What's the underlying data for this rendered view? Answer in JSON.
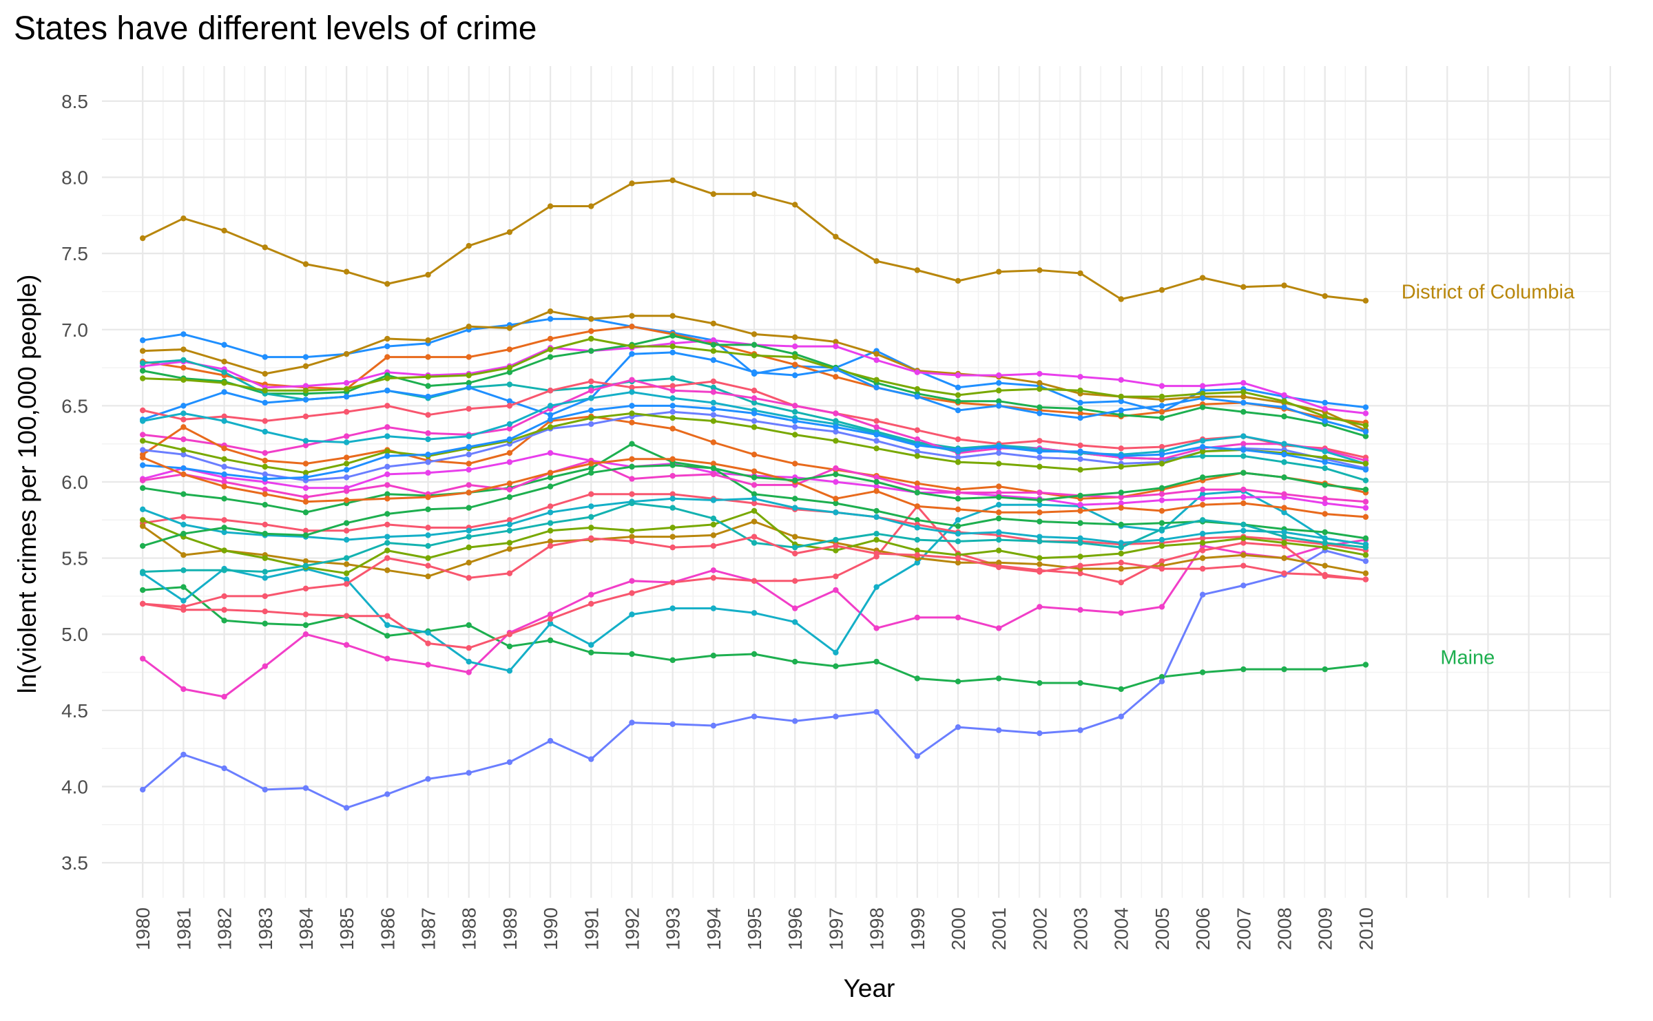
{
  "chart_data": {
    "type": "line",
    "title": "States have different levels of crime",
    "xlabel": "Year",
    "ylabel": "ln(violent crimes per 100,000 people)",
    "x": [
      1980,
      1981,
      1982,
      1983,
      1984,
      1985,
      1986,
      1987,
      1988,
      1989,
      1990,
      1991,
      1992,
      1993,
      1994,
      1995,
      1996,
      1997,
      1998,
      1999,
      2000,
      2001,
      2002,
      2003,
      2004,
      2005,
      2006,
      2007,
      2008,
      2009,
      2010
    ],
    "x_tick_labels": [
      "1980",
      "1981",
      "1982",
      "1983",
      "1984",
      "1985",
      "1986",
      "1987",
      "1988",
      "1989",
      "1990",
      "1991",
      "1992",
      "1993",
      "1994",
      "1995",
      "1996",
      "1997",
      "1998",
      "1999",
      "2000",
      "2001",
      "2002",
      "2003",
      "2004",
      "2005",
      "2006",
      "2007",
      "2008",
      "2009",
      "2010"
    ],
    "xlim": [
      1979.0,
      2016.0
    ],
    "ylim": [
      3.27,
      8.73
    ],
    "y_ticks": [
      3.5,
      4.0,
      4.5,
      5.0,
      5.5,
      6.0,
      6.5,
      7.0,
      7.5,
      8.0,
      8.5
    ],
    "y_tick_labels": [
      "3.5",
      "4.0",
      "4.5",
      "5.0",
      "5.5",
      "6.0",
      "6.5",
      "7.0",
      "7.5",
      "8.0",
      "8.5"
    ],
    "grid": true,
    "legend": "none",
    "annotations": [
      {
        "text": "District of Columbia",
        "x": 2013.0,
        "y": 7.25,
        "color": "#B8860B"
      },
      {
        "text": "Maine",
        "x": 2012.5,
        "y": 4.85,
        "color": "#1DAF4F"
      }
    ],
    "series": [
      {
        "name": "District of Columbia",
        "color": "#B8860B",
        "values": [
          7.6,
          7.73,
          7.65,
          7.54,
          7.43,
          7.38,
          7.3,
          7.36,
          7.55,
          7.64,
          7.81,
          7.81,
          7.96,
          7.98,
          7.89,
          7.89,
          7.82,
          7.61,
          7.45,
          7.39,
          7.32,
          7.38,
          7.39,
          7.37,
          7.2,
          7.26,
          7.34,
          7.28,
          7.29,
          7.22,
          7.19
        ]
      },
      {
        "name": "Maine",
        "color": "#1DAF4F",
        "values": [
          5.29,
          5.31,
          5.09,
          5.07,
          5.06,
          5.12,
          4.99,
          5.02,
          5.06,
          4.92,
          4.96,
          4.88,
          4.87,
          4.83,
          4.86,
          4.87,
          4.82,
          4.79,
          4.82,
          4.71,
          4.69,
          4.71,
          4.68,
          4.68,
          4.64,
          4.72,
          4.75,
          4.77,
          4.77,
          4.77,
          4.8
        ]
      },
      {
        "color": "#6A7EFF",
        "values": [
          3.98,
          4.21,
          4.12,
          3.98,
          3.99,
          3.86,
          3.95,
          4.05,
          4.09,
          4.16,
          4.3,
          4.18,
          4.42,
          4.41,
          4.4,
          4.46,
          4.43,
          4.46,
          4.49,
          4.2,
          4.39,
          4.37,
          4.35,
          4.37,
          4.46,
          4.69,
          5.26,
          5.32,
          5.39,
          5.55,
          5.48
        ]
      },
      {
        "color": "#F13EC8",
        "values": [
          4.84,
          4.64,
          4.59,
          4.79,
          5.0,
          4.93,
          4.84,
          4.8,
          4.75,
          5.01,
          5.13,
          5.26,
          5.35,
          5.34,
          5.42,
          5.35,
          5.17,
          5.29,
          5.04,
          5.11,
          5.11,
          5.04,
          5.18,
          5.16,
          5.14,
          5.18,
          5.58,
          5.53,
          5.5,
          5.58,
          5.62
        ]
      },
      {
        "color": "#14AFC7",
        "values": [
          5.4,
          5.22,
          5.43,
          5.37,
          5.43,
          5.36,
          5.06,
          5.01,
          4.82,
          4.76,
          5.07,
          4.93,
          5.13,
          5.17,
          5.17,
          5.14,
          5.08,
          4.88,
          5.31,
          5.47,
          5.75,
          5.85,
          5.85,
          5.84,
          5.71,
          5.68,
          5.92,
          5.94,
          5.8,
          5.63,
          5.59
        ]
      },
      {
        "color": "#F8566E",
        "values": [
          5.2,
          5.16,
          5.16,
          5.15,
          5.13,
          5.12,
          5.12,
          4.94,
          4.91,
          5.0,
          5.1,
          5.2,
          5.27,
          5.34,
          5.37,
          5.35,
          5.35,
          5.38,
          5.51,
          5.84,
          5.53,
          5.45,
          5.42,
          5.4,
          5.34,
          5.48,
          5.55,
          5.6,
          5.58,
          5.38,
          5.36
        ]
      },
      {
        "color": "#1F8FFF",
        "values": [
          6.93,
          6.97,
          6.9,
          6.82,
          6.82,
          6.84,
          6.89,
          6.91,
          7.0,
          7.03,
          7.07,
          7.07,
          7.02,
          6.98,
          6.93,
          6.71,
          6.76,
          6.75,
          6.86,
          6.73,
          6.62,
          6.65,
          6.63,
          6.52,
          6.53,
          6.46,
          6.6,
          6.61,
          6.56,
          6.52,
          6.49
        ]
      },
      {
        "color": "#B8860B",
        "values": [
          6.86,
          6.87,
          6.79,
          6.71,
          6.76,
          6.84,
          6.94,
          6.93,
          7.02,
          7.01,
          7.12,
          7.07,
          7.09,
          7.09,
          7.04,
          6.97,
          6.95,
          6.92,
          6.84,
          6.73,
          6.71,
          6.69,
          6.65,
          6.58,
          6.56,
          6.54,
          6.56,
          6.56,
          6.52,
          6.46,
          6.34
        ]
      },
      {
        "color": "#E86A1C",
        "values": [
          6.79,
          6.75,
          6.7,
          6.64,
          6.62,
          6.61,
          6.82,
          6.82,
          6.82,
          6.87,
          6.94,
          6.99,
          7.02,
          6.97,
          6.91,
          6.84,
          6.77,
          6.69,
          6.62,
          6.56,
          6.52,
          6.5,
          6.47,
          6.45,
          6.43,
          6.46,
          6.51,
          6.52,
          6.48,
          6.42,
          6.39
        ]
      },
      {
        "color": "#E83EEC",
        "values": [
          6.76,
          6.79,
          6.74,
          6.62,
          6.63,
          6.65,
          6.72,
          6.7,
          6.71,
          6.76,
          6.88,
          6.86,
          6.88,
          6.91,
          6.93,
          6.9,
          6.89,
          6.89,
          6.8,
          6.72,
          6.7,
          6.7,
          6.71,
          6.69,
          6.67,
          6.63,
          6.63,
          6.65,
          6.57,
          6.48,
          6.45
        ]
      },
      {
        "color": "#1DAF4F",
        "values": [
          6.73,
          6.68,
          6.66,
          6.58,
          6.58,
          6.59,
          6.7,
          6.63,
          6.65,
          6.72,
          6.82,
          6.86,
          6.9,
          6.96,
          6.9,
          6.9,
          6.84,
          6.75,
          6.65,
          6.58,
          6.53,
          6.53,
          6.49,
          6.48,
          6.44,
          6.42,
          6.49,
          6.46,
          6.43,
          6.38,
          6.3
        ]
      },
      {
        "color": "#13B2B0",
        "values": [
          6.78,
          6.8,
          6.72,
          6.58,
          6.54,
          6.56,
          6.6,
          6.55,
          6.62,
          6.64,
          6.6,
          6.62,
          6.66,
          6.68,
          6.62,
          6.52,
          6.46,
          6.4,
          6.33,
          6.26,
          6.22,
          6.24,
          6.22,
          6.19,
          6.16,
          6.15,
          6.17,
          6.17,
          6.13,
          6.09,
          6.01
        ]
      },
      {
        "color": "#78A800",
        "values": [
          6.68,
          6.67,
          6.65,
          6.6,
          6.6,
          6.61,
          6.68,
          6.69,
          6.7,
          6.75,
          6.87,
          6.94,
          6.89,
          6.89,
          6.86,
          6.83,
          6.82,
          6.74,
          6.67,
          6.61,
          6.57,
          6.6,
          6.61,
          6.6,
          6.56,
          6.56,
          6.58,
          6.59,
          6.53,
          6.43,
          6.37
        ]
      },
      {
        "color": "#1F8FFF",
        "values": [
          6.41,
          6.5,
          6.59,
          6.52,
          6.54,
          6.56,
          6.6,
          6.56,
          6.62,
          6.53,
          6.44,
          6.55,
          6.84,
          6.85,
          6.8,
          6.72,
          6.7,
          6.74,
          6.62,
          6.56,
          6.47,
          6.5,
          6.45,
          6.42,
          6.47,
          6.5,
          6.55,
          6.52,
          6.49,
          6.4,
          6.33
        ]
      },
      {
        "color": "#F8566E",
        "values": [
          6.47,
          6.41,
          6.43,
          6.4,
          6.43,
          6.46,
          6.5,
          6.44,
          6.48,
          6.5,
          6.6,
          6.66,
          6.62,
          6.63,
          6.66,
          6.6,
          6.5,
          6.45,
          6.4,
          6.34,
          6.28,
          6.25,
          6.27,
          6.24,
          6.22,
          6.23,
          6.28,
          6.3,
          6.24,
          6.22,
          6.16
        ]
      },
      {
        "color": "#F13EC8",
        "values": [
          6.31,
          6.28,
          6.24,
          6.19,
          6.24,
          6.3,
          6.36,
          6.32,
          6.31,
          6.35,
          6.48,
          6.6,
          6.67,
          6.6,
          6.59,
          6.55,
          6.5,
          6.45,
          6.36,
          6.28,
          6.19,
          6.22,
          6.22,
          6.19,
          6.16,
          6.15,
          6.22,
          6.25,
          6.25,
          6.21,
          6.14
        ]
      },
      {
        "color": "#E86A1C",
        "values": [
          6.18,
          6.36,
          6.22,
          6.14,
          6.12,
          6.16,
          6.21,
          6.14,
          6.12,
          6.19,
          6.4,
          6.43,
          6.39,
          6.35,
          6.26,
          6.18,
          6.12,
          6.08,
          6.04,
          5.99,
          5.95,
          5.97,
          5.93,
          5.89,
          5.9,
          5.95,
          6.01,
          6.06,
          6.03,
          5.99,
          5.93
        ]
      },
      {
        "color": "#14AFC7",
        "values": [
          6.4,
          6.45,
          6.4,
          6.33,
          6.27,
          6.26,
          6.3,
          6.28,
          6.3,
          6.38,
          6.5,
          6.55,
          6.59,
          6.55,
          6.52,
          6.47,
          6.42,
          6.38,
          6.32,
          6.25,
          6.2,
          6.24,
          6.21,
          6.19,
          6.18,
          6.2,
          6.27,
          6.3,
          6.25,
          6.2,
          6.12
        ]
      },
      {
        "color": "#6A7EFF",
        "values": [
          6.21,
          6.18,
          6.1,
          6.05,
          6.01,
          6.03,
          6.1,
          6.13,
          6.18,
          6.25,
          6.35,
          6.38,
          6.43,
          6.46,
          6.44,
          6.4,
          6.36,
          6.33,
          6.27,
          6.2,
          6.16,
          6.19,
          6.16,
          6.15,
          6.12,
          6.13,
          6.2,
          6.22,
          6.21,
          6.15,
          6.09
        ]
      },
      {
        "color": "#78A800",
        "values": [
          6.27,
          6.21,
          6.15,
          6.1,
          6.06,
          6.12,
          6.2,
          6.17,
          6.22,
          6.27,
          6.36,
          6.42,
          6.45,
          6.42,
          6.4,
          6.36,
          6.31,
          6.27,
          6.22,
          6.17,
          6.13,
          6.12,
          6.1,
          6.08,
          6.1,
          6.12,
          6.2,
          6.21,
          6.19,
          6.16,
          6.12
        ]
      },
      {
        "color": "#E83EEC",
        "values": [
          6.02,
          6.09,
          6.03,
          6.0,
          5.96,
          5.96,
          6.05,
          6.06,
          6.08,
          6.13,
          6.19,
          6.14,
          6.1,
          6.12,
          6.06,
          6.04,
          6.03,
          6.0,
          5.97,
          5.93,
          5.93,
          5.91,
          5.89,
          5.85,
          5.86,
          5.88,
          5.89,
          5.9,
          5.9,
          5.86,
          5.83
        ]
      },
      {
        "color": "#1DAF4F",
        "values": [
          5.96,
          5.92,
          5.89,
          5.85,
          5.8,
          5.86,
          5.92,
          5.91,
          5.93,
          5.96,
          6.03,
          6.09,
          6.25,
          6.13,
          6.09,
          5.92,
          5.89,
          5.86,
          5.81,
          5.75,
          5.71,
          5.76,
          5.74,
          5.73,
          5.72,
          5.73,
          5.74,
          5.72,
          5.69,
          5.67,
          5.63
        ]
      },
      {
        "color": "#F8566E",
        "values": [
          5.73,
          5.77,
          5.75,
          5.72,
          5.68,
          5.68,
          5.72,
          5.7,
          5.7,
          5.75,
          5.84,
          5.92,
          5.92,
          5.92,
          5.89,
          5.86,
          5.82,
          5.8,
          5.77,
          5.72,
          5.67,
          5.65,
          5.61,
          5.61,
          5.59,
          5.6,
          5.63,
          5.64,
          5.62,
          5.59,
          5.55
        ]
      },
      {
        "color": "#14AFC7",
        "values": [
          5.82,
          5.72,
          5.67,
          5.65,
          5.64,
          5.62,
          5.64,
          5.65,
          5.68,
          5.72,
          5.8,
          5.84,
          5.87,
          5.89,
          5.88,
          5.89,
          5.83,
          5.8,
          5.77,
          5.7,
          5.66,
          5.67,
          5.64,
          5.63,
          5.6,
          5.62,
          5.66,
          5.68,
          5.67,
          5.63,
          5.59
        ]
      },
      {
        "color": "#B8860B",
        "values": [
          5.71,
          5.52,
          5.55,
          5.52,
          5.48,
          5.46,
          5.42,
          5.38,
          5.47,
          5.56,
          5.61,
          5.62,
          5.64,
          5.64,
          5.65,
          5.74,
          5.64,
          5.6,
          5.55,
          5.5,
          5.47,
          5.47,
          5.46,
          5.43,
          5.43,
          5.45,
          5.5,
          5.52,
          5.5,
          5.45,
          5.4
        ]
      },
      {
        "color": "#78A800",
        "values": [
          5.75,
          5.64,
          5.55,
          5.5,
          5.44,
          5.4,
          5.55,
          5.5,
          5.57,
          5.6,
          5.68,
          5.7,
          5.68,
          5.7,
          5.72,
          5.81,
          5.59,
          5.55,
          5.62,
          5.55,
          5.52,
          5.55,
          5.5,
          5.51,
          5.53,
          5.58,
          5.6,
          5.63,
          5.6,
          5.57,
          5.52
        ]
      },
      {
        "color": "#F13EC8",
        "values": [
          6.01,
          6.05,
          6.0,
          5.95,
          5.9,
          5.94,
          5.98,
          5.92,
          5.98,
          5.95,
          6.06,
          6.14,
          6.02,
          6.04,
          6.05,
          5.98,
          5.98,
          6.09,
          6.03,
          5.96,
          5.93,
          5.93,
          5.93,
          5.91,
          5.9,
          5.92,
          5.95,
          5.95,
          5.92,
          5.89,
          5.87
        ]
      },
      {
        "color": "#1F8FFF",
        "values": [
          6.11,
          6.09,
          6.05,
          6.02,
          6.03,
          6.08,
          6.17,
          6.18,
          6.23,
          6.28,
          6.41,
          6.47,
          6.5,
          6.5,
          6.48,
          6.45,
          6.4,
          6.36,
          6.31,
          6.24,
          6.21,
          6.23,
          6.2,
          6.2,
          6.17,
          6.18,
          6.23,
          6.21,
          6.18,
          6.13,
          6.08
        ]
      },
      {
        "color": "#E86A1C",
        "values": [
          6.16,
          6.05,
          5.97,
          5.92,
          5.87,
          5.88,
          5.89,
          5.9,
          5.93,
          5.99,
          6.06,
          6.12,
          6.15,
          6.15,
          6.12,
          6.07,
          6.0,
          5.89,
          5.94,
          5.84,
          5.82,
          5.8,
          5.8,
          5.81,
          5.83,
          5.81,
          5.85,
          5.86,
          5.83,
          5.79,
          5.77
        ]
      },
      {
        "color": "#13B2B0",
        "values": [
          5.41,
          5.42,
          5.42,
          5.41,
          5.45,
          5.5,
          5.6,
          5.58,
          5.64,
          5.68,
          5.73,
          5.77,
          5.86,
          5.83,
          5.76,
          5.6,
          5.57,
          5.62,
          5.66,
          5.62,
          5.61,
          5.62,
          5.61,
          5.6,
          5.57,
          5.69,
          5.75,
          5.72,
          5.64,
          5.6,
          5.57
        ]
      },
      {
        "color": "#1DAF4F",
        "values": [
          5.58,
          5.66,
          5.7,
          5.66,
          5.65,
          5.73,
          5.79,
          5.82,
          5.83,
          5.9,
          5.97,
          6.06,
          6.1,
          6.11,
          6.09,
          6.03,
          6.01,
          6.05,
          6.0,
          5.93,
          5.89,
          5.9,
          5.88,
          5.91,
          5.93,
          5.96,
          6.03,
          6.06,
          6.03,
          5.98,
          5.95
        ]
      },
      {
        "color": "#F8566E",
        "values": [
          5.2,
          5.18,
          5.25,
          5.25,
          5.3,
          5.33,
          5.5,
          5.45,
          5.37,
          5.4,
          5.58,
          5.63,
          5.61,
          5.57,
          5.58,
          5.64,
          5.53,
          5.58,
          5.53,
          5.52,
          5.5,
          5.44,
          5.41,
          5.45,
          5.47,
          5.43,
          5.43,
          5.45,
          5.4,
          5.39,
          5.36
        ]
      }
    ]
  }
}
